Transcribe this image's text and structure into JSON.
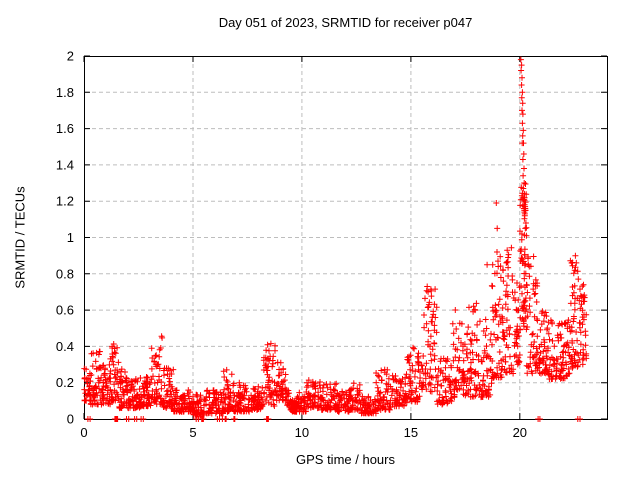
{
  "page": {
    "background": "#ffffff"
  },
  "chart_data": {
    "type": "scatter",
    "title": "Day 051 of 2023, SRMTID for receiver p047",
    "xlabel": "GPS time / hours",
    "ylabel": "SRMTID / TECUs",
    "series_name": "SRMTID",
    "xlim": [
      0,
      24
    ],
    "ylim": [
      0,
      2
    ],
    "x_ticks": {
      "values": [
        0,
        5,
        10,
        15,
        20
      ],
      "labels": [
        "0",
        "5",
        "10",
        "15",
        "20"
      ]
    },
    "y_ticks": {
      "values": [
        0,
        0.2,
        0.4,
        0.6,
        0.8,
        1,
        1.2,
        1.4,
        1.6,
        1.8,
        2
      ],
      "labels": [
        "0",
        "0.2",
        "0.4",
        "0.6",
        "0.8",
        "1",
        "1.2",
        "1.4",
        "1.6",
        "1.8",
        "2"
      ]
    },
    "grid": {
      "on": true,
      "color": "#bdbdbd",
      "dash": "4 3"
    },
    "axis_color": "#000000",
    "marker": {
      "shape": "plus",
      "color": "#ff0000",
      "size": 7
    },
    "cloud_bins": [
      [
        0.0,
        0.3,
        0.1,
        0.32,
        30
      ],
      [
        0.3,
        0.8,
        0.08,
        0.38,
        50
      ],
      [
        0.8,
        1.2,
        0.08,
        0.3,
        40
      ],
      [
        1.2,
        1.6,
        0.1,
        0.45,
        45
      ],
      [
        1.6,
        2.1,
        0.06,
        0.28,
        50
      ],
      [
        2.1,
        2.6,
        0.06,
        0.24,
        50
      ],
      [
        2.6,
        3.1,
        0.07,
        0.24,
        50
      ],
      [
        3.1,
        3.6,
        0.08,
        0.46,
        50
      ],
      [
        3.6,
        4.1,
        0.06,
        0.28,
        50
      ],
      [
        4.1,
        5.0,
        0.04,
        0.16,
        80
      ],
      [
        5.0,
        5.6,
        0.02,
        0.14,
        55
      ],
      [
        5.6,
        6.4,
        0.03,
        0.17,
        70
      ],
      [
        6.4,
        6.8,
        0.04,
        0.28,
        40
      ],
      [
        6.8,
        7.6,
        0.04,
        0.2,
        70
      ],
      [
        7.6,
        8.2,
        0.05,
        0.18,
        55
      ],
      [
        8.2,
        8.8,
        0.07,
        0.44,
        55
      ],
      [
        8.8,
        9.3,
        0.1,
        0.32,
        45
      ],
      [
        9.3,
        10.2,
        0.04,
        0.16,
        80
      ],
      [
        10.2,
        10.9,
        0.06,
        0.22,
        60
      ],
      [
        10.9,
        11.6,
        0.05,
        0.2,
        60
      ],
      [
        11.6,
        12.2,
        0.04,
        0.16,
        55
      ],
      [
        12.2,
        12.7,
        0.05,
        0.2,
        45
      ],
      [
        12.7,
        13.4,
        0.03,
        0.14,
        60
      ],
      [
        13.4,
        14.1,
        0.05,
        0.28,
        60
      ],
      [
        14.1,
        14.8,
        0.07,
        0.26,
        60
      ],
      [
        14.8,
        15.4,
        0.09,
        0.4,
        55
      ],
      [
        15.4,
        16.2,
        0.15,
        0.73,
        70
      ],
      [
        16.2,
        16.9,
        0.08,
        0.36,
        55
      ],
      [
        16.9,
        17.6,
        0.12,
        0.62,
        60
      ],
      [
        17.6,
        18.2,
        0.12,
        0.65,
        55
      ],
      [
        18.2,
        18.7,
        0.12,
        0.55,
        45
      ],
      [
        18.7,
        19.2,
        0.22,
        0.9,
        50,
        1.4
      ],
      [
        19.2,
        19.7,
        0.25,
        0.95,
        50,
        1.4
      ],
      [
        19.7,
        20.0,
        0.3,
        0.75,
        30
      ],
      [
        20.0,
        20.3,
        0.45,
        1.3,
        60,
        1.0
      ],
      [
        20.3,
        20.8,
        0.25,
        0.9,
        50,
        1.5
      ],
      [
        20.8,
        21.3,
        0.25,
        0.6,
        50
      ],
      [
        21.3,
        22.3,
        0.22,
        0.55,
        90,
        1.3
      ],
      [
        22.3,
        22.75,
        0.28,
        0.9,
        50,
        1.5
      ],
      [
        22.75,
        23.05,
        0.3,
        0.75,
        35,
        1.3
      ]
    ],
    "spike_points": [
      [
        20.05,
        1.98
      ],
      [
        20.08,
        1.95
      ],
      [
        20.06,
        1.92
      ],
      [
        20.1,
        1.88
      ],
      [
        20.08,
        1.84
      ],
      [
        20.12,
        1.8
      ],
      [
        20.09,
        1.77
      ],
      [
        20.13,
        1.74
      ],
      [
        20.1,
        1.7
      ],
      [
        20.14,
        1.68
      ],
      [
        20.12,
        1.63
      ],
      [
        20.16,
        1.59
      ],
      [
        20.13,
        1.56
      ],
      [
        20.17,
        1.52
      ],
      [
        20.11,
        1.52
      ],
      [
        20.18,
        1.46
      ],
      [
        20.14,
        1.43
      ],
      [
        20.19,
        1.38
      ],
      [
        20.15,
        1.34
      ],
      [
        20.2,
        1.3
      ],
      [
        20.16,
        1.27
      ],
      [
        20.21,
        1.24
      ],
      [
        20.18,
        1.21
      ],
      [
        20.2,
        1.18
      ],
      [
        20.23,
        1.17
      ],
      [
        20.19,
        1.16
      ],
      [
        20.22,
        1.15
      ],
      [
        20.25,
        1.16
      ],
      [
        20.21,
        1.14
      ],
      [
        20.24,
        1.17
      ],
      [
        20.2,
        1.15
      ],
      [
        20.23,
        1.13
      ],
      [
        20.26,
        1.15
      ],
      [
        20.22,
        1.18
      ],
      [
        20.28,
        1.08
      ],
      [
        20.25,
        1.05
      ],
      [
        20.3,
        1.01
      ],
      [
        18.92,
        1.19
      ],
      [
        18.96,
        1.05
      ],
      [
        18.5,
        0.85
      ],
      [
        18.95,
        0.92
      ],
      [
        19.0,
        0.87
      ],
      [
        19.42,
        0.93
      ],
      [
        19.46,
        0.89
      ],
      [
        19.38,
        0.86
      ],
      [
        15.75,
        0.73
      ],
      [
        15.79,
        0.7
      ],
      [
        22.55,
        0.9
      ],
      [
        22.59,
        0.86
      ],
      [
        22.92,
        0.74
      ]
    ],
    "zero_points": [
      0.18,
      0.28,
      1.42,
      1.46,
      1.5,
      1.54,
      1.95,
      2.05,
      2.32,
      2.42,
      2.62,
      2.72,
      5.15,
      5.25,
      5.4,
      5.44,
      5.48,
      6.12,
      6.22,
      6.35,
      6.48,
      6.52,
      6.88,
      6.92,
      8.38,
      8.42,
      8.46,
      20.84,
      20.92,
      22.66,
      22.76
    ]
  }
}
